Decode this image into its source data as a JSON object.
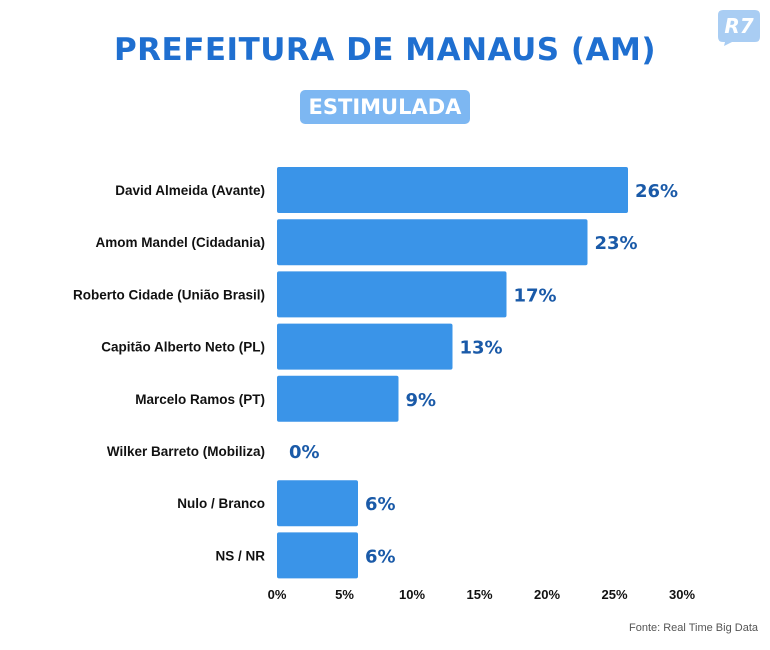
{
  "brand": {
    "logo_text": "R7",
    "logo_color": "#a9cdf3"
  },
  "colors": {
    "title": "#1f6fd0",
    "badge_bg": "#7db7f2",
    "bar": "#3a94e8",
    "value_text": "#1a5aa8"
  },
  "chart_data": {
    "type": "bar",
    "orientation": "horizontal",
    "title": "PREFEITURA DE MANAUS (AM)",
    "subtitle": "ESTIMULADA",
    "categories": [
      "David Almeida (Avante)",
      "Amom Mandel (Cidadania)",
      "Roberto Cidade (União Brasil)",
      "Capitão Alberto Neto (PL)",
      "Marcelo Ramos (PT)",
      "Wilker Barreto (Mobiliza)",
      "Nulo / Branco",
      "NS / NR"
    ],
    "values": [
      26,
      23,
      17,
      13,
      9,
      0,
      6,
      6
    ],
    "value_labels": [
      "26%",
      "23%",
      "17%",
      "13%",
      "9%",
      "0%",
      "6%",
      "6%"
    ],
    "xlim": [
      0,
      30
    ],
    "xticks": [
      0,
      5,
      10,
      15,
      20,
      25,
      30
    ],
    "xtick_labels": [
      "0%",
      "5%",
      "10%",
      "15%",
      "20%",
      "25%",
      "30%"
    ],
    "grid": false,
    "legend": "none"
  },
  "source": "Fonte: Real Time Big Data"
}
